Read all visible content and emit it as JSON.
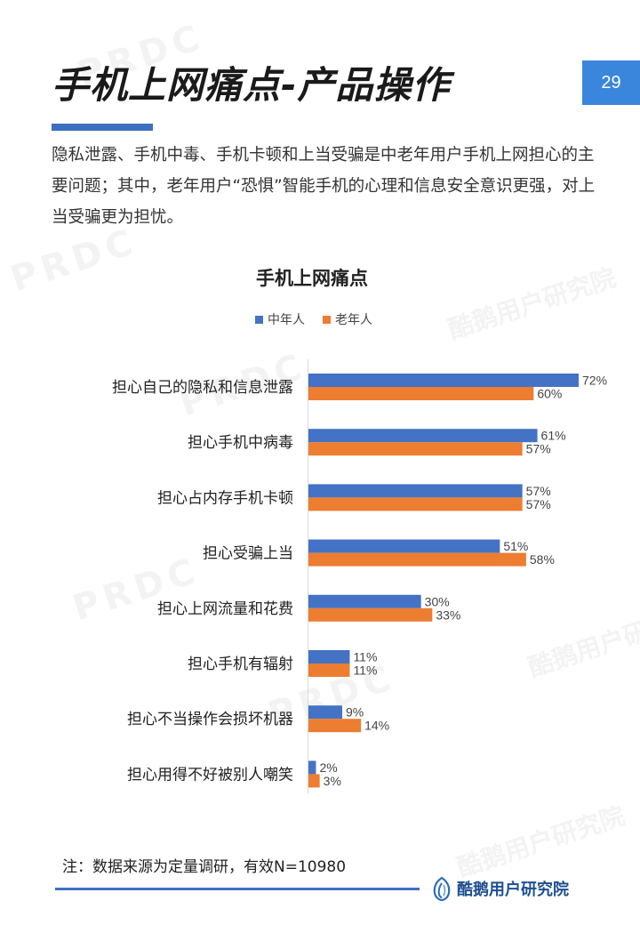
{
  "header": {
    "title": "手机上网痛点-产品操作",
    "page_number": "29"
  },
  "intro_text": "隐私泄露、手机中毒、手机卡顿和上当受骗是中老年用户手机上网担心的主要问题；其中，老年用户“恐惧”智能手机的心理和信息安全意识更强，对上当受骗更为担忧。",
  "chart_data": {
    "type": "bar",
    "orientation": "horizontal",
    "title": "手机上网痛点",
    "legend_position": "top",
    "categories": [
      "担心自己的隐私和信息泄露",
      "担心手机中病毒",
      "担心占内存手机卡顿",
      "担心受骗上当",
      "担心上网流量和花费",
      "担心手机有辐射",
      "担心不当操作会损坏机器",
      "担心用得不好被别人嘲笑"
    ],
    "series": [
      {
        "name": "中年人",
        "color": "#4472c4",
        "values": [
          72,
          61,
          57,
          51,
          30,
          11,
          9,
          2
        ]
      },
      {
        "name": "老年人",
        "color": "#ed7d31",
        "values": [
          60,
          57,
          57,
          58,
          33,
          11,
          14,
          3
        ]
      }
    ],
    "value_suffix": "%",
    "xlim": [
      0,
      75
    ],
    "grid": false
  },
  "footnote": "注：数据来源为定量调研，有效N=10980",
  "brand": {
    "name": "酷鹅用户研究院"
  },
  "watermarks": {
    "prdc": "PRDC",
    "brand": "酷鹅用户研究院"
  }
}
